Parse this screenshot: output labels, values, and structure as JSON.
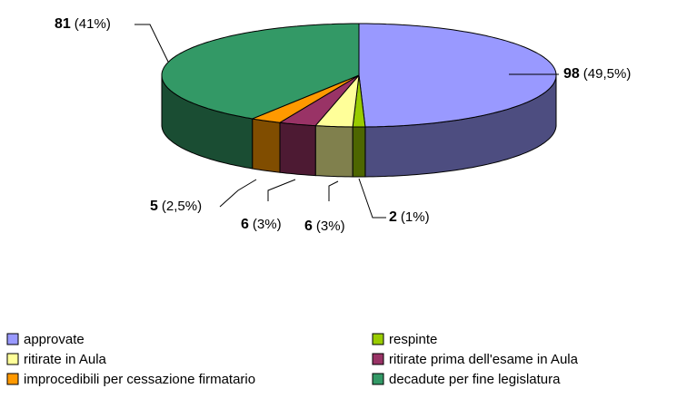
{
  "chart_data": {
    "type": "pie3d",
    "categories": [
      "approvate",
      "respinte",
      "ritirate in Aula",
      "ritirate prima dell'esame in Aula",
      "improcedibili per cessazione firmatario",
      "decadute per fine legislatura"
    ],
    "values": [
      98,
      2,
      6,
      6,
      5,
      81
    ],
    "percent_labels": [
      "(49,5%)",
      "(1%)",
      "(3%)",
      "(3%)",
      "(2,5%)",
      "(41%)"
    ],
    "colors": [
      "#9999ff",
      "#99cc00",
      "#ffff99",
      "#993366",
      "#ff9900",
      "#339966"
    ],
    "legend": "bottom"
  }
}
